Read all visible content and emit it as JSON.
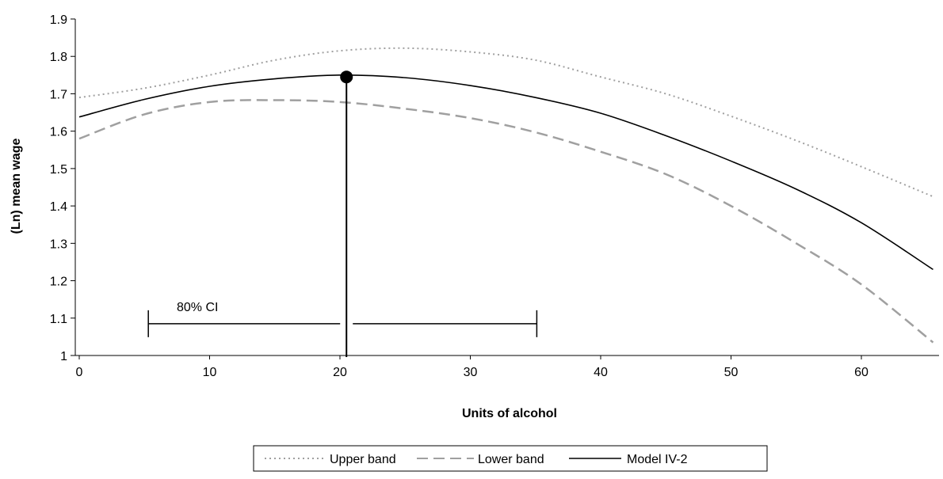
{
  "chart_data": {
    "type": "line",
    "title": "",
    "xlabel": "Units of alcohol",
    "ylabel": "(Ln) mean wage",
    "xlim": [
      0,
      65.5
    ],
    "ylim": [
      1,
      1.9
    ],
    "x_ticks": [
      "0",
      "10",
      "20",
      "30",
      "40",
      "50",
      "60"
    ],
    "y_ticks": [
      "1",
      "1.1",
      "1.2",
      "1.3",
      "1.4",
      "1.5",
      "1.6",
      "1.7",
      "1.8",
      "1.9"
    ],
    "grid": false,
    "legend_position": "bottom",
    "series": [
      {
        "name": "Upper band",
        "style": "dotted",
        "color": "#a0a0a0",
        "x": [
          0,
          5,
          10,
          15,
          20,
          25,
          30,
          35,
          40,
          45,
          50,
          55,
          60,
          65.5
        ],
        "y": [
          1.69,
          1.715,
          1.75,
          1.79,
          1.815,
          1.822,
          1.812,
          1.79,
          1.745,
          1.7,
          1.64,
          1.575,
          1.505,
          1.425
        ]
      },
      {
        "name": "Lower band",
        "style": "dashed",
        "color": "#a0a0a0",
        "x": [
          0,
          5,
          10,
          15,
          20,
          25,
          30,
          35,
          40,
          45,
          50,
          55,
          60,
          65.5
        ],
        "y": [
          1.58,
          1.645,
          1.678,
          1.683,
          1.678,
          1.66,
          1.635,
          1.597,
          1.545,
          1.485,
          1.4,
          1.3,
          1.19,
          1.035
        ]
      },
      {
        "name": "Model IV-2",
        "style": "solid",
        "color": "#000000",
        "x": [
          0,
          5,
          10,
          15,
          20,
          25,
          30,
          35,
          40,
          45,
          50,
          55,
          60,
          65.5
        ],
        "y": [
          1.638,
          1.685,
          1.72,
          1.74,
          1.75,
          1.743,
          1.722,
          1.69,
          1.648,
          1.588,
          1.52,
          1.445,
          1.355,
          1.23
        ]
      }
    ],
    "peak": {
      "x": 20.5,
      "y": 1.745
    },
    "ci": {
      "label": "80% CI",
      "low": 5.3,
      "high": 35.1,
      "y": 1.085
    }
  }
}
